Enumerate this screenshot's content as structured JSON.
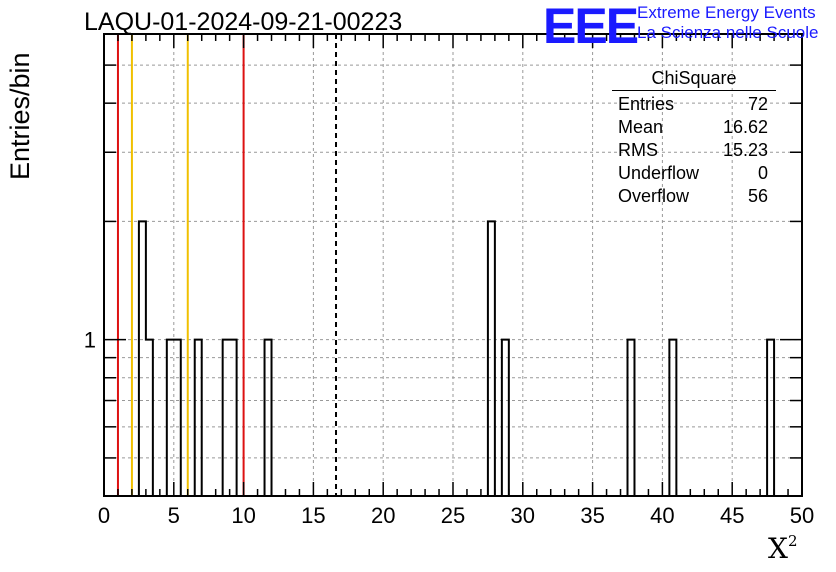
{
  "title": "LAQU-01-2024-09-21-00223",
  "logo": {
    "mark": "EEE",
    "line1": "Extreme Energy Events",
    "line2": "La Scienza nelle Scuole",
    "color": "#1a1aff"
  },
  "stats": {
    "title": "ChiSquare",
    "rows": [
      {
        "label": "Entries",
        "value": "72"
      },
      {
        "label": "Mean",
        "value": "16.62"
      },
      {
        "label": "RMS",
        "value": "15.23"
      },
      {
        "label": "Underflow",
        "value": "0"
      },
      {
        "label": "Overflow",
        "value": "56"
      }
    ]
  },
  "chart_data": {
    "type": "histogram",
    "title": "LAQU-01-2024-09-21-00223",
    "xlabel": "X",
    "xlabel_superscript": "2",
    "ylabel": "Entries/bin",
    "xlim": [
      0,
      50
    ],
    "ylim": [
      0.4,
      6
    ],
    "log_y": true,
    "grid": true,
    "bin_width": 0.5,
    "x_ticks": [
      0,
      5,
      10,
      15,
      20,
      25,
      30,
      35,
      40,
      45,
      50
    ],
    "y_tick_labels": [
      1
    ],
    "bins": [
      {
        "x": 2.5,
        "count": 2
      },
      {
        "x": 3,
        "count": 1
      },
      {
        "x": 4.5,
        "count": 1
      },
      {
        "x": 5,
        "count": 1
      },
      {
        "x": 6.5,
        "count": 1
      },
      {
        "x": 8.5,
        "count": 1
      },
      {
        "x": 9,
        "count": 1
      },
      {
        "x": 11.5,
        "count": 1
      },
      {
        "x": 27.5,
        "count": 2
      },
      {
        "x": 28.5,
        "count": 1
      },
      {
        "x": 37.5,
        "count": 1
      },
      {
        "x": 40.5,
        "count": 1
      },
      {
        "x": 47.5,
        "count": 1
      }
    ],
    "vertical_lines": [
      {
        "x": 1,
        "color": "#dd1111",
        "style": "solid"
      },
      {
        "x": 2,
        "color": "#f0c000",
        "style": "solid"
      },
      {
        "x": 6,
        "color": "#f0c000",
        "style": "solid"
      },
      {
        "x": 10,
        "color": "#dd1111",
        "style": "solid"
      },
      {
        "x": 16.62,
        "color": "#000000",
        "style": "dashed"
      }
    ]
  }
}
